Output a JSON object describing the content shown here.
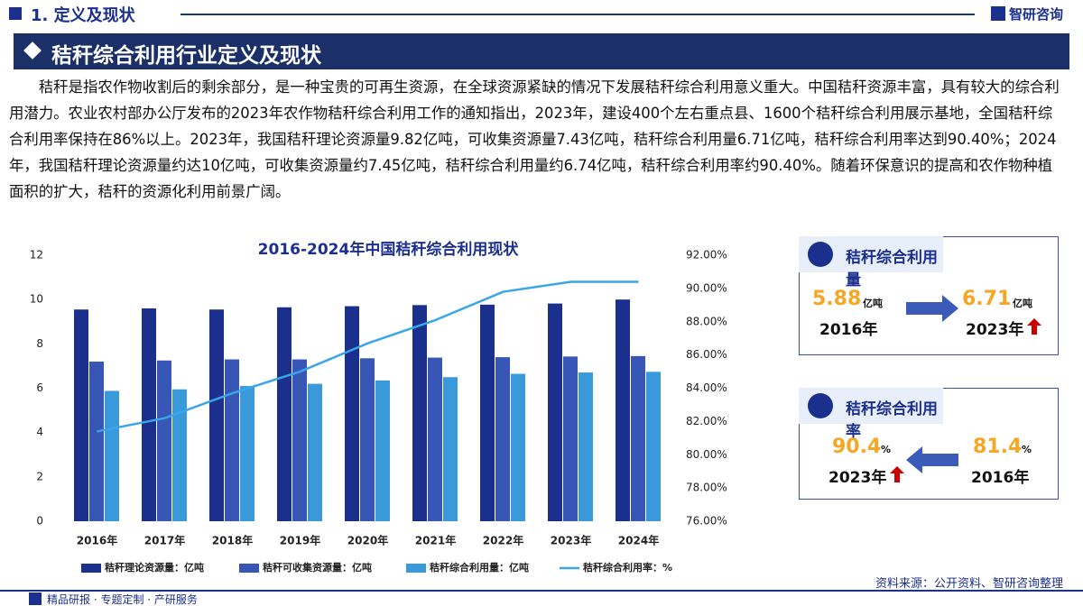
{
  "header": {
    "title": "1. 定义及现状",
    "brand": "智研咨询"
  },
  "section_title": "秸秆综合利用行业定义及现状",
  "paragraph": "秸秆是指农作物收割后的剩余部分，是一种宝贵的可再生资源，在全球资源紧缺的情况下发展秸秆综合利用意义重大。中国秸秆资源丰富，具有较大的综合利用潜力。农业农村部办公厅发布的2023年农作物秸秆综合利用工作的通知指出，2023年，建设400个左右重点县、1600个秸秆综合利用展示基地，全国秸秆综合利用率保持在86%以上。2023年，我国秸秆理论资源量9.82亿吨，可收集资源量7.43亿吨，秸秆综合利用量6.71亿吨，秸秆综合利用率达到90.40%；2024年，我国秸秆理论资源量约达10亿吨，可收集资源量约7.45亿吨，秸秆综合利用量约6.74亿吨，秸秆综合利用率约90.40%。随着环保意识的提高和农作物种植面积的扩大，秸秆的资源化利用前景广阔。",
  "chart_data": {
    "type": "bar",
    "title": "2016-2024年中国秸秆综合利用现状",
    "categories": [
      "2016年",
      "2017年",
      "2018年",
      "2019年",
      "2020年",
      "2021年",
      "2022年",
      "2023年",
      "2024年"
    ],
    "series": [
      {
        "name": "秸秆理论资源量：亿吨",
        "color": "#1b2f8c",
        "values": [
          9.55,
          9.6,
          9.55,
          9.65,
          9.7,
          9.75,
          9.77,
          9.82,
          10
        ]
      },
      {
        "name": "秸秆可收集资源量：亿吨",
        "color": "#3856b5",
        "values": [
          7.2,
          7.25,
          7.3,
          7.3,
          7.35,
          7.38,
          7.4,
          7.43,
          7.45
        ]
      },
      {
        "name": "秸秆综合利用量：亿吨",
        "color": "#3a9ad9",
        "values": [
          5.88,
          5.95,
          6.1,
          6.2,
          6.35,
          6.5,
          6.65,
          6.71,
          6.74
        ]
      },
      {
        "name": "秸秆综合利用率：%",
        "color": "#3aa5e8",
        "type": "line",
        "axis": "y2",
        "values": [
          81.4,
          82.2,
          83.7,
          85.0,
          86.7,
          88.1,
          89.8,
          90.4,
          90.4
        ]
      }
    ],
    "ylim": [
      0,
      12
    ],
    "yticks": [
      0,
      2,
      4,
      6,
      8,
      10,
      12
    ],
    "y2lim": [
      76,
      92
    ],
    "y2ticks": [
      {
        "value": 76,
        "label": "76.00%"
      },
      {
        "value": 78,
        "label": "78.00%"
      },
      {
        "value": 80,
        "label": "80.00%"
      },
      {
        "value": 82,
        "label": "82.00%"
      },
      {
        "value": 84,
        "label": "84.00%"
      },
      {
        "value": 86,
        "label": "86.00%"
      },
      {
        "value": 88,
        "label": "88.00%"
      },
      {
        "value": 90,
        "label": "90.00%"
      },
      {
        "value": 92,
        "label": "92.00%"
      }
    ],
    "legend": "bottom"
  },
  "cards": [
    {
      "title": "秸秆综合利用量",
      "left": {
        "value": "5.88",
        "unit": "亿吨",
        "year": "2016年"
      },
      "right": {
        "value": "6.71",
        "unit": "亿吨",
        "year": "2023年"
      }
    },
    {
      "title": "秸秆综合利用率",
      "left": {
        "value": "90.4",
        "unit": "%",
        "year": "2023年"
      },
      "right": {
        "value": "81.4",
        "unit": "%",
        "year": "2016年"
      }
    }
  ],
  "source": "资料来源：公开资料、智研咨询整理",
  "footer": "精品研报 · 专题定制 · 产研服务"
}
